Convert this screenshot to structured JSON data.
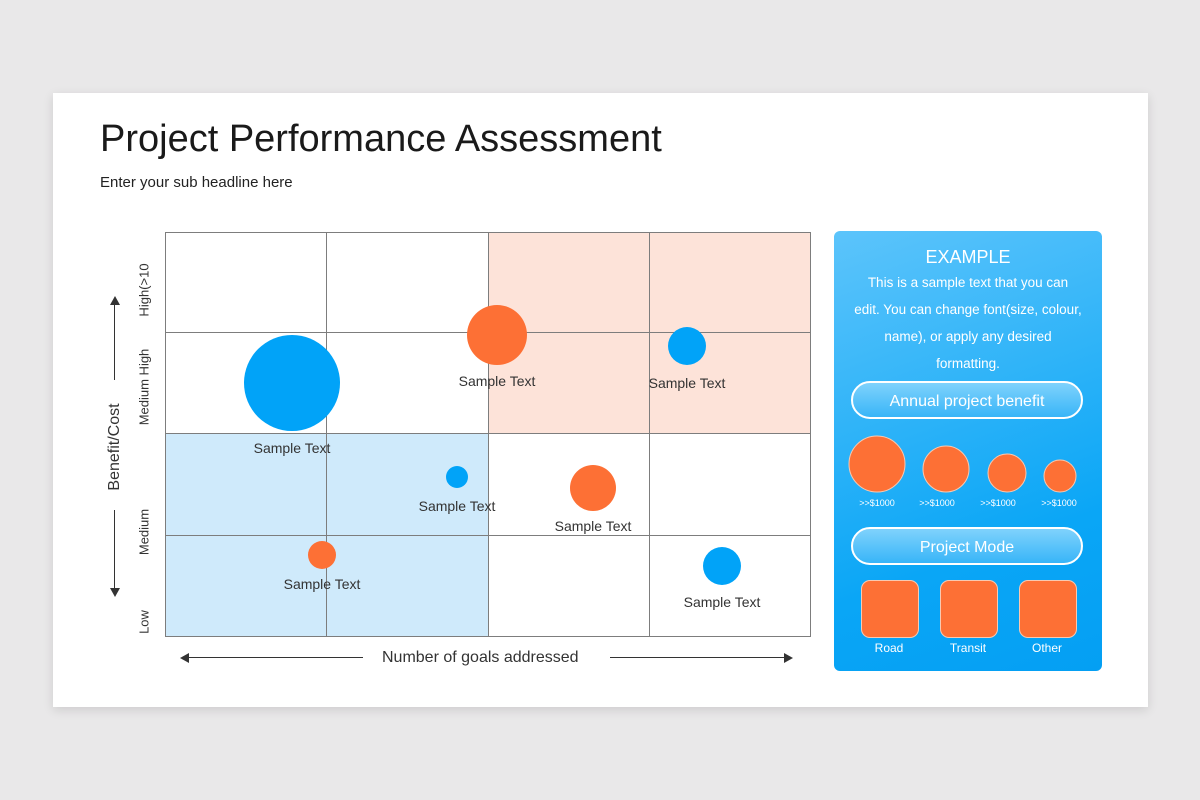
{
  "header": {
    "title": "Project Performance Assessment",
    "subtitle": "Enter your sub headline here"
  },
  "matrix": {
    "y_axis_label": "Benefit/Cost",
    "x_axis_label": "Number of goals addressed",
    "y_levels": [
      "High(>10",
      "Medium High",
      "Medium",
      "Low"
    ],
    "colors": {
      "blue": "#01a3f8",
      "orange": "#fd7035",
      "blue_zone": "#cfeafb",
      "orange_zone": "#fde3d9"
    },
    "bubbles": [
      {
        "label": "Sample Text",
        "color": "blue",
        "size": "large"
      },
      {
        "label": "Sample Text",
        "color": "orange",
        "size": "medium-large"
      },
      {
        "label": "Sample Text",
        "color": "blue",
        "size": "medium"
      },
      {
        "label": "Sample Text",
        "color": "blue",
        "size": "small"
      },
      {
        "label": "Sample Text",
        "color": "orange",
        "size": "medium"
      },
      {
        "label": "Sample Text",
        "color": "orange",
        "size": "small"
      },
      {
        "label": "Sample Text",
        "color": "blue",
        "size": "medium"
      }
    ]
  },
  "panel": {
    "heading": "EXAMPLE",
    "body": "This is a sample text that you can edit. You can change font(size, colour, name), or apply any desired formatting.",
    "benefit_button": "Annual project benefit",
    "benefit_sizes": [
      ">>$1000",
      ">>$1000",
      ">>$1000",
      ">>$1000"
    ],
    "mode_button": "Project Mode",
    "modes": [
      "Road",
      "Transit",
      "Other"
    ]
  }
}
